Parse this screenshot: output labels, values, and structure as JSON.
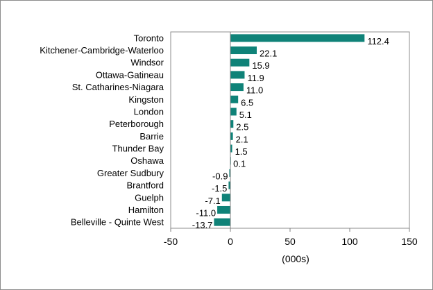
{
  "chart_data": {
    "type": "bar",
    "orientation": "horizontal",
    "categories": [
      "Toronto",
      "Kitchener-Cambridge-Waterloo",
      "Windsor",
      "Ottawa-Gatineau",
      "St. Catharines-Niagara",
      "Kingston",
      "London",
      "Peterborough",
      "Barrie",
      "Thunder Bay",
      "Oshawa",
      "Greater Sudbury",
      "Brantford",
      "Guelph",
      "Hamilton",
      "Belleville - Quinte West"
    ],
    "values": [
      112.4,
      22.1,
      15.9,
      11.9,
      11.0,
      6.5,
      5.1,
      2.5,
      2.1,
      1.5,
      0.1,
      -0.9,
      -1.5,
      -7.1,
      -11.0,
      -13.7
    ],
    "value_labels": [
      "112.4",
      "22.1",
      "15.9",
      "11.9",
      "11.0",
      "6.5",
      "5.1",
      "2.5",
      "2.1",
      "1.5",
      "0.1",
      "-0.9",
      "-1.5",
      "-7.1",
      "-11.0",
      "-13.7"
    ],
    "xlabel": "(000s)",
    "ylabel": "",
    "title": "",
    "xlim": [
      -50,
      150
    ],
    "xticks": [
      -50,
      0,
      50,
      100,
      150
    ],
    "grid": false,
    "legend": "none",
    "bar_color": "#0f8278"
  }
}
